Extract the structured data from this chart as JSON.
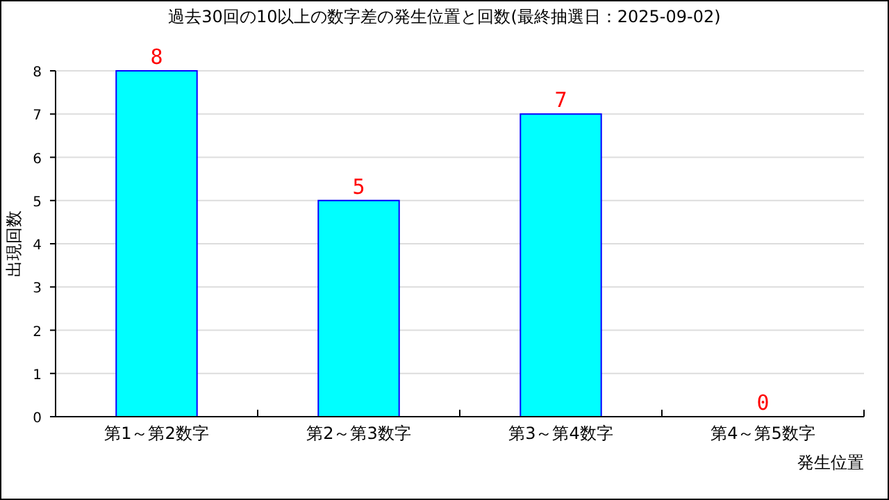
{
  "chart_data": {
    "type": "bar",
    "title": "過去30回の10以上の数字差の発生位置と回数(最終抽選日：2025-09-02)",
    "xlabel": "発生位置",
    "ylabel": "出現回数",
    "categories": [
      "第1～第2数字",
      "第2～第3数字",
      "第3～第4数字",
      "第4～第5数字"
    ],
    "values": [
      8,
      5,
      7,
      0
    ],
    "color": "#00ffff",
    "ylim": [
      0,
      8
    ],
    "yticks": [
      0,
      1,
      2,
      3,
      4,
      5,
      6,
      7,
      8
    ],
    "grid": "y",
    "data_labels": true
  }
}
